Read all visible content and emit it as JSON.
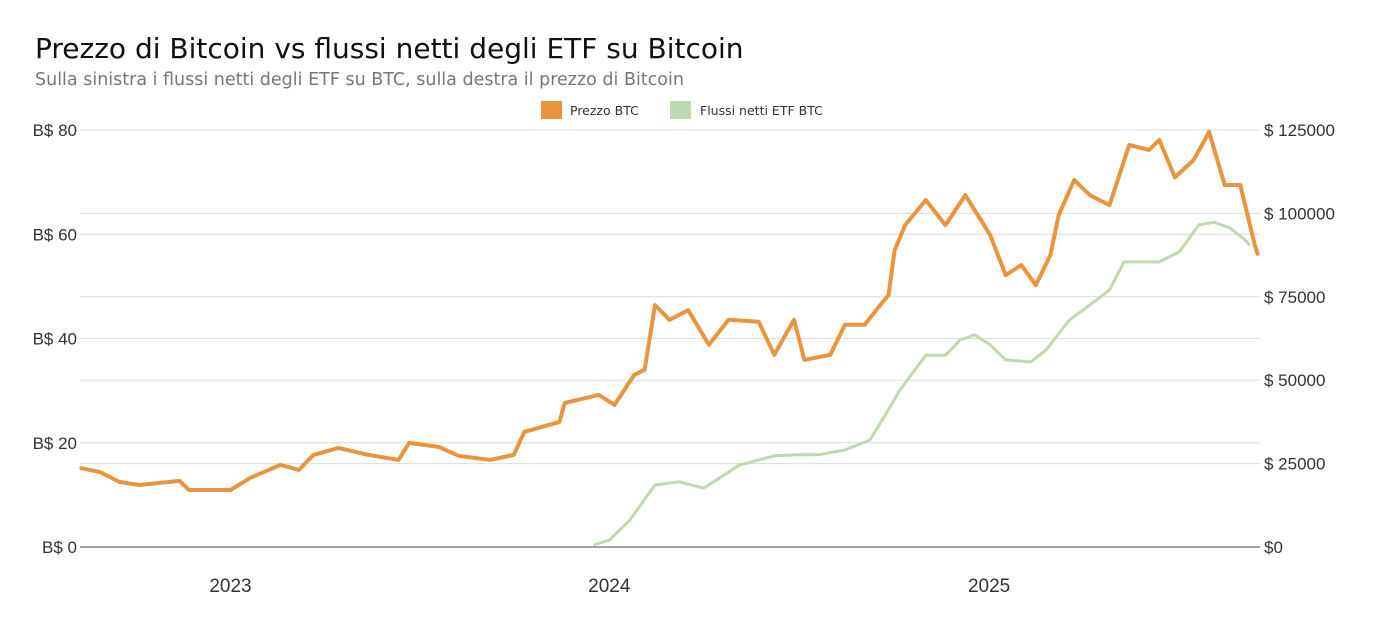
{
  "chart_data": {
    "type": "line",
    "title": "Prezzo di Bitcoin vs flussi netti degli ETF su Bitcoin",
    "subtitle": "Sulla sinistra i flussi netti degli ETF su BTC, sulla destra il prezzo di Bitcoin",
    "legend_position": "top",
    "grid": true,
    "x_axis": {
      "type": "date",
      "range": [
        "2022-08-09",
        "2025-09-19"
      ],
      "tick_labels": [
        "2023",
        "2024",
        "2025"
      ],
      "tick_dates": [
        "2023-01-01",
        "2024-01-01",
        "2025-01-01"
      ]
    },
    "y_left": {
      "range": [
        0,
        80
      ],
      "ticks": [
        0,
        20,
        40,
        60,
        80
      ],
      "tick_labels": [
        "B$ 0",
        "B$ 20",
        "B$ 40",
        "B$ 60",
        "B$ 80"
      ]
    },
    "y_right": {
      "range": [
        0,
        125000
      ],
      "ticks": [
        0,
        25000,
        50000,
        75000,
        100000,
        125000
      ],
      "tick_labels": [
        "$0",
        "$ 25000",
        "$ 50000",
        "$ 75000",
        "$ 100000",
        "$ 125000"
      ]
    },
    "series": [
      {
        "name": "Prezzo BTC",
        "axis": "right",
        "color": "#E8953E",
        "points": [
          [
            "2022-08-09",
            23700
          ],
          [
            "2022-08-28",
            22500
          ],
          [
            "2022-09-16",
            19500
          ],
          [
            "2022-10-05",
            18600
          ],
          [
            "2022-11-13",
            19800
          ],
          [
            "2022-11-22",
            17100
          ],
          [
            "2023-01-01",
            17100
          ],
          [
            "2023-01-20",
            20700
          ],
          [
            "2023-02-18",
            24600
          ],
          [
            "2023-03-08",
            23100
          ],
          [
            "2023-03-22",
            27600
          ],
          [
            "2023-04-15",
            29700
          ],
          [
            "2023-05-14",
            27600
          ],
          [
            "2023-06-12",
            26100
          ],
          [
            "2023-06-22",
            31200
          ],
          [
            "2023-07-21",
            30000
          ],
          [
            "2023-08-09",
            27300
          ],
          [
            "2023-09-08",
            26100
          ],
          [
            "2023-10-01",
            27600
          ],
          [
            "2023-10-11",
            34500
          ],
          [
            "2023-11-14",
            37500
          ],
          [
            "2023-11-19",
            43200
          ],
          [
            "2023-12-22",
            45600
          ],
          [
            "2024-01-06",
            42600
          ],
          [
            "2024-01-25",
            51600
          ],
          [
            "2024-02-04",
            53100
          ],
          [
            "2024-02-14",
            72500
          ],
          [
            "2024-02-28",
            68100
          ],
          [
            "2024-03-17",
            71000
          ],
          [
            "2024-04-06",
            60600
          ],
          [
            "2024-04-25",
            68100
          ],
          [
            "2024-05-24",
            67500
          ],
          [
            "2024-06-08",
            57600
          ],
          [
            "2024-06-27",
            68100
          ],
          [
            "2024-07-07",
            56100
          ],
          [
            "2024-08-01",
            57600
          ],
          [
            "2024-08-15",
            66600
          ],
          [
            "2024-09-03",
            66600
          ],
          [
            "2024-09-18",
            72500
          ],
          [
            "2024-09-26",
            75500
          ],
          [
            "2024-10-02",
            89000
          ],
          [
            "2024-10-12",
            96500
          ],
          [
            "2024-11-01",
            104000
          ],
          [
            "2024-11-20",
            96500
          ],
          [
            "2024-12-09",
            105500
          ],
          [
            "2025-01-02",
            93500
          ],
          [
            "2025-01-17",
            81500
          ],
          [
            "2025-02-01",
            84500
          ],
          [
            "2025-02-15",
            78500
          ],
          [
            "2025-03-01",
            87500
          ],
          [
            "2025-03-09",
            99500
          ],
          [
            "2025-03-24",
            110000
          ],
          [
            "2025-04-08",
            105500
          ],
          [
            "2025-04-27",
            102500
          ],
          [
            "2025-05-16",
            120500
          ],
          [
            "2025-06-04",
            119000
          ],
          [
            "2025-06-14",
            122000
          ],
          [
            "2025-06-29",
            110800
          ],
          [
            "2025-07-17",
            116000
          ],
          [
            "2025-08-01",
            124400
          ],
          [
            "2025-08-16",
            108500
          ],
          [
            "2025-08-31",
            108500
          ],
          [
            "2025-09-14",
            90500
          ],
          [
            "2025-09-17",
            87500
          ]
        ]
      },
      {
        "name": "Flussi netti ETF BTC",
        "axis": "left",
        "color": "#BFD9B0",
        "points": [
          [
            "2023-12-17",
            0.4
          ],
          [
            "2024-01-01",
            1.3
          ],
          [
            "2024-01-21",
            5.2
          ],
          [
            "2024-02-14",
            11.9
          ],
          [
            "2024-03-08",
            12.5
          ],
          [
            "2024-04-01",
            11.3
          ],
          [
            "2024-04-16",
            13.2
          ],
          [
            "2024-05-05",
            15.7
          ],
          [
            "2024-06-08",
            17.5
          ],
          [
            "2024-07-02",
            17.7
          ],
          [
            "2024-07-21",
            17.7
          ],
          [
            "2024-08-15",
            18.6
          ],
          [
            "2024-09-08",
            20.5
          ],
          [
            "2024-09-23",
            25.3
          ],
          [
            "2024-10-07",
            30.1
          ],
          [
            "2024-11-01",
            36.8
          ],
          [
            "2024-11-20",
            36.8
          ],
          [
            "2024-12-04",
            39.7
          ],
          [
            "2024-12-18",
            40.7
          ],
          [
            "2025-01-02",
            38.8
          ],
          [
            "2025-01-17",
            35.9
          ],
          [
            "2025-02-10",
            35.5
          ],
          [
            "2025-02-25",
            37.8
          ],
          [
            "2025-03-19",
            43.5
          ],
          [
            "2025-04-08",
            46.4
          ],
          [
            "2025-04-27",
            49.3
          ],
          [
            "2025-05-11",
            54.7
          ],
          [
            "2025-05-25",
            54.7
          ],
          [
            "2025-06-14",
            54.7
          ],
          [
            "2025-07-03",
            56.6
          ],
          [
            "2025-07-22",
            61.8
          ],
          [
            "2025-08-06",
            62.3
          ],
          [
            "2025-08-21",
            61.2
          ],
          [
            "2025-09-05",
            58.9
          ],
          [
            "2025-09-09",
            57.9
          ]
        ]
      }
    ]
  }
}
